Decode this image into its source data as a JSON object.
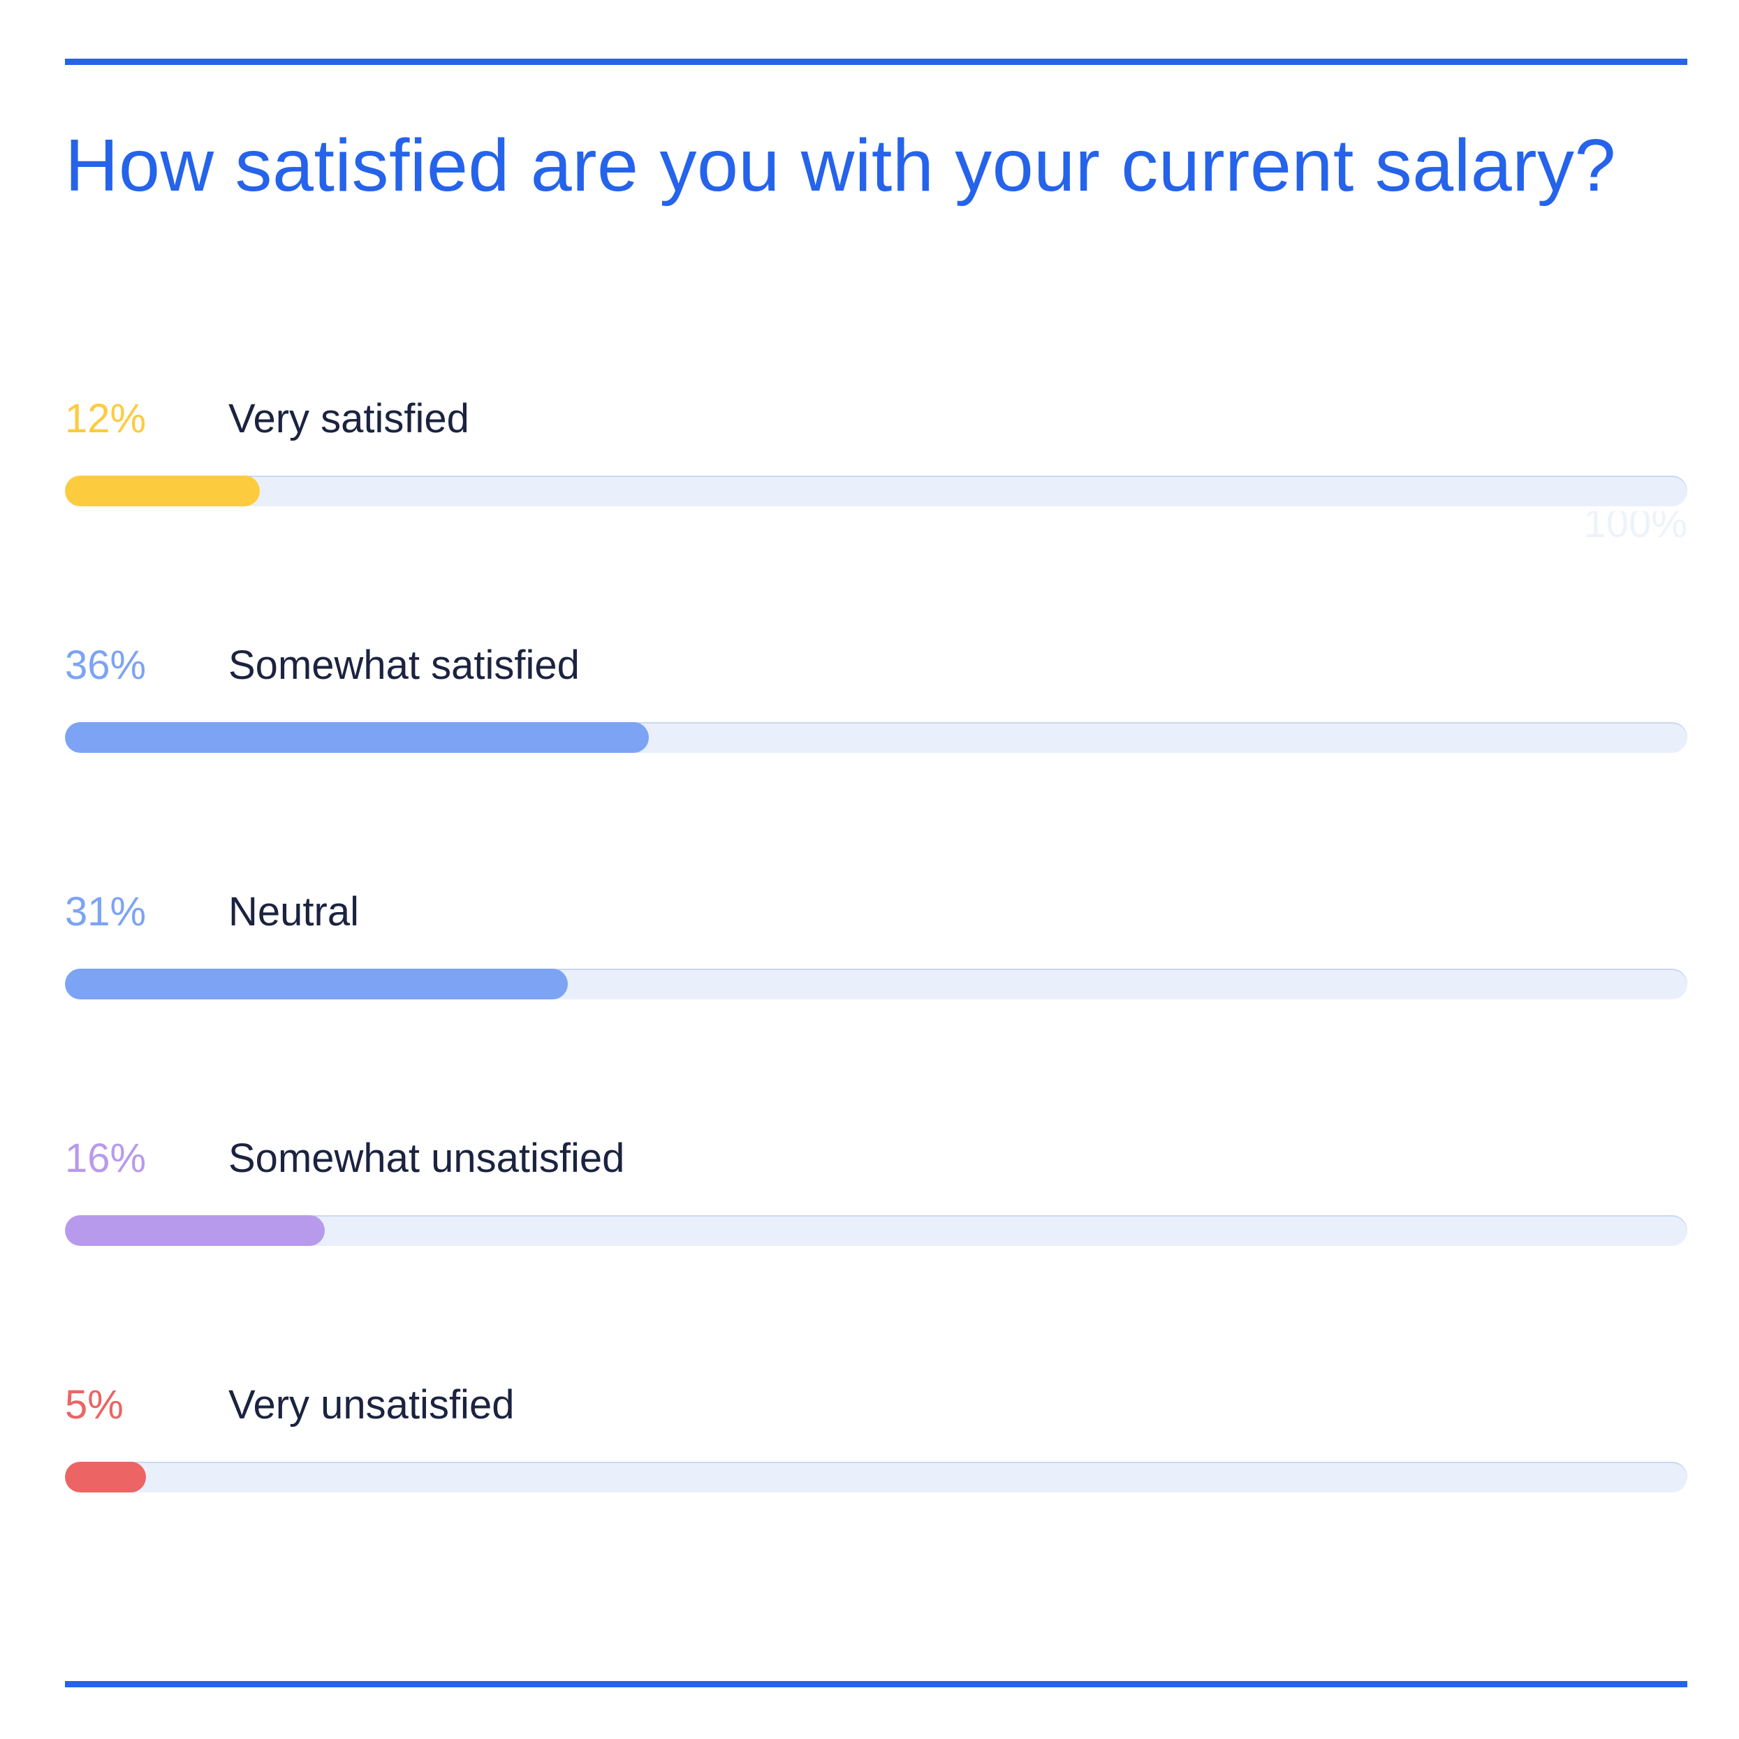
{
  "chart_data": {
    "type": "bar",
    "orientation": "horizontal",
    "title": "How satisfied are you with your current salary?",
    "categories": [
      "Very satisfied",
      "Somewhat satisfied",
      "Neutral",
      "Somewhat unsatisfied",
      "Very unsatisfied"
    ],
    "values": [
      12,
      36,
      31,
      16,
      5
    ],
    "value_labels": [
      "12%",
      "36%",
      "31%",
      "16%",
      "5%"
    ],
    "colors": [
      "#fdcb3e",
      "#7ca3f4",
      "#7ca3f4",
      "#b89aed",
      "#ec6464"
    ],
    "track_color": "#e9f0fb",
    "xlim": [
      0,
      100
    ],
    "scale_max_label": "100%",
    "grid": false,
    "legend": "none"
  },
  "accent_color": "#2563eb"
}
